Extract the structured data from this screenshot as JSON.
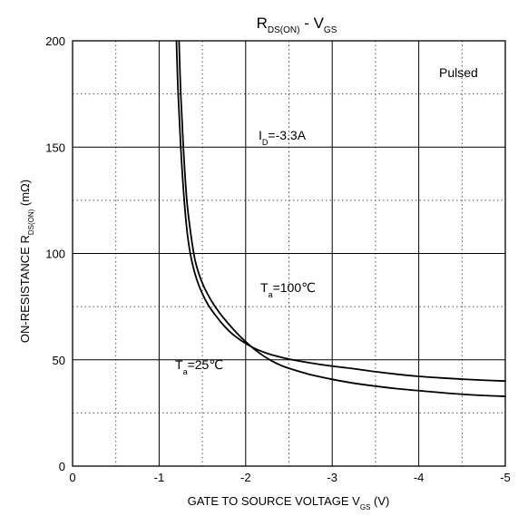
{
  "chart_data": {
    "type": "line",
    "title": {
      "main1": "R",
      "sub1": "DS(ON)",
      "main2": " - V",
      "sub2": "GS"
    },
    "xlabel": {
      "main": "GATE TO SOURCE VOLTAGE V",
      "sub": "GS",
      "unit": " (V)"
    },
    "ylabel": {
      "main": "ON-RESISTANCE R",
      "sub": "DS(ON)",
      "unit": " (mΩ)"
    },
    "xlim": [
      0,
      -5
    ],
    "ylim": [
      0,
      200
    ],
    "x_ticks": [
      0,
      -1,
      -2,
      -3,
      -4,
      -5
    ],
    "x_tick_labels": [
      "0",
      "-1",
      "-2",
      "-3",
      "-4",
      "-5"
    ],
    "y_ticks": [
      0,
      50,
      100,
      150,
      200
    ],
    "y_tick_labels": [
      "0",
      "50",
      "100",
      "150",
      "200"
    ],
    "grid": "major solid, minor dotted",
    "series": [
      {
        "name": "Ta=25°C",
        "x": [
          -1.23,
          -1.25,
          -1.28,
          -1.32,
          -1.37,
          -1.42,
          -1.5,
          -1.6,
          -1.7,
          -1.8,
          -1.9,
          -2.0,
          -2.1,
          -2.2,
          -2.3,
          -2.4,
          -2.5,
          -2.75,
          -3.0,
          -3.25,
          -3.5,
          -3.75,
          -4.0,
          -4.25,
          -4.5,
          -4.75,
          -5.0
        ],
        "y": [
          200,
          175,
          150,
          125,
          108,
          96,
          86,
          78,
          72,
          67,
          62.5,
          58.5,
          55,
          52,
          49.5,
          47.5,
          46,
          43,
          40.8,
          39,
          37.6,
          36.4,
          35.5,
          34.6,
          33.8,
          33.2,
          32.8
        ]
      },
      {
        "name": "Ta=100°C",
        "x": [
          -1.2,
          -1.22,
          -1.25,
          -1.29,
          -1.33,
          -1.38,
          -1.45,
          -1.55,
          -1.65,
          -1.75,
          -1.85,
          -1.95,
          -2.05,
          -2.15,
          -2.25,
          -2.35,
          -2.5,
          -2.75,
          -3.0,
          -3.25,
          -3.5,
          -3.75,
          -4.0,
          -4.25,
          -4.5,
          -4.75,
          -5.0
        ],
        "y": [
          200,
          175,
          150,
          125,
          108,
          96,
          86,
          77,
          71,
          66,
          62,
          59,
          56.5,
          54.5,
          53,
          51.8,
          50.3,
          48.5,
          47,
          45.8,
          44.4,
          43.2,
          42.2,
          41.5,
          40.9,
          40.4,
          40
        ]
      }
    ],
    "annotations": {
      "pulsed": "Pulsed",
      "id_main": "I",
      "id_sub": "D",
      "id_value": "=-3.3A",
      "ta100_main": "T",
      "ta100_sub": "a",
      "ta100_value": "=100℃",
      "ta25_main": "T",
      "ta25_sub": "a",
      "ta25_value": "=25℃"
    }
  }
}
